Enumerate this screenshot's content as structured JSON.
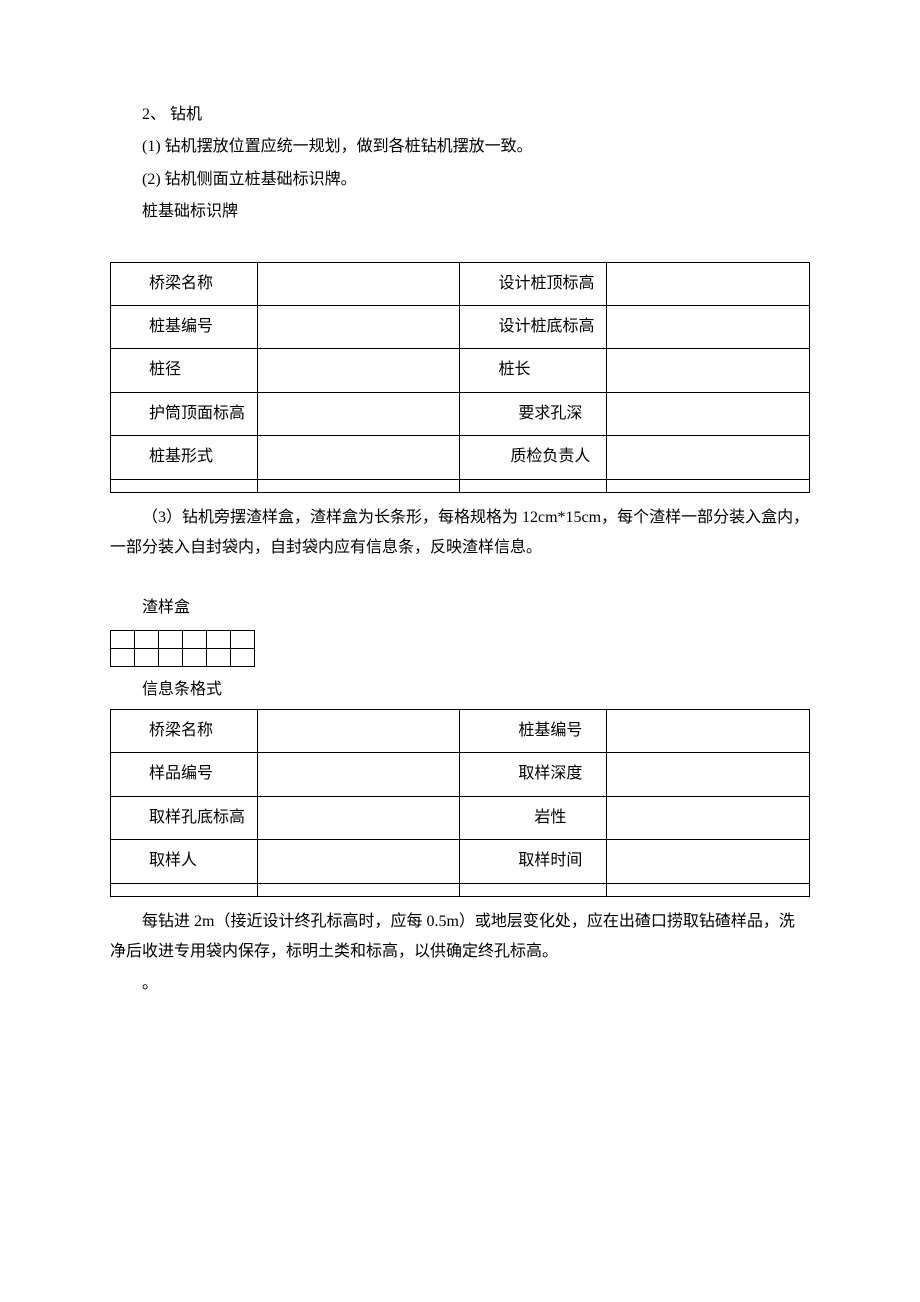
{
  "section": {
    "heading2": "2、 钻机",
    "item1": "(1) 钻机摆放位置应统一规划，做到各桩钻机摆放一致。",
    "item2": "(2) 钻机侧面立桩基础标识牌。",
    "label_sign": "桩基础标识牌"
  },
  "table1": {
    "r1c1": "桥梁名称",
    "r1c3": "设计桩顶标高",
    "r2c1": "桩基编号",
    "r2c3": "设计桩底标高",
    "r3c1": "桩径",
    "r3c3": "桩长",
    "r4c1": "护筒顶面标高",
    "r4c3": "要求孔深",
    "r5c1": "桩基形式",
    "r5c3": "质检负责人"
  },
  "para3": "（3）钻机旁摆渣样盒，渣样盒为长条形，每格规格为 12cm*15cm，每个渣样一部分装入盒内，一部分装入自封袋内，自封袋内应有信息条，反映渣样信息。",
  "label_box": "渣样盒",
  "label_info_format": "信息条格式",
  "table2": {
    "r1c1": "桥梁名称",
    "r1c3": "桩基编号",
    "r2c1": "样品编号",
    "r2c3": "取样深度",
    "r3c1": "取样孔底标高",
    "r3c3": "岩性",
    "r4c1": "取样人",
    "r4c3": "取样时间"
  },
  "para_end": "每钻进 2m（接近设计终孔标高时，应每 0.5m）或地层变化处，应在出碴口捞取钻碴样品，洗净后收进专用袋内保存，标明土类和标高，以供确定终孔标高。",
  "dot": "。"
}
